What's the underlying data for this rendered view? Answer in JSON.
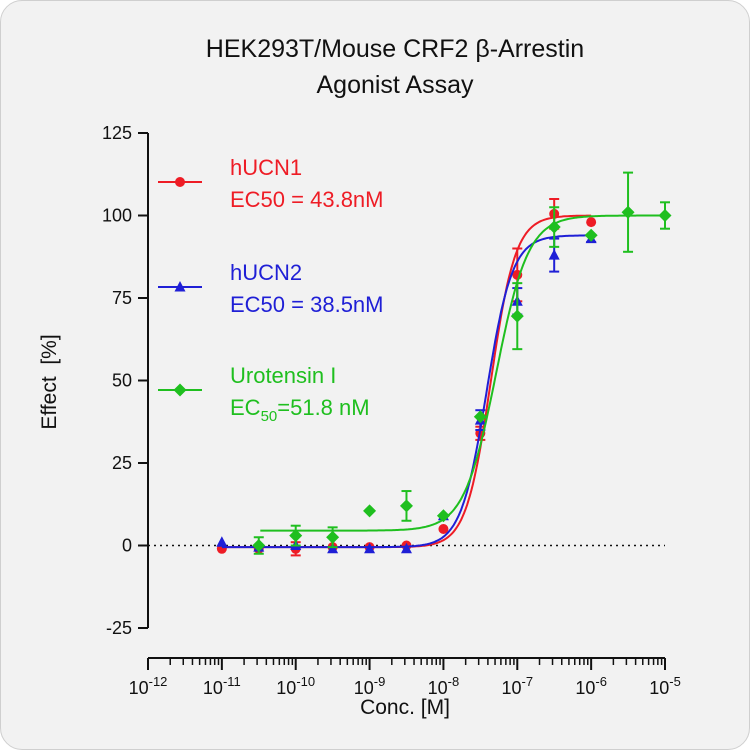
{
  "colors": {
    "hUCN1": "#ee1c25",
    "hUCN2": "#1f1fd6",
    "urotensin": "#1fbf1f",
    "axis": "#111111",
    "background": "#f2f2f2"
  },
  "chart_data": {
    "type": "scatter",
    "title": [
      "HEK293T/Mouse CRF2 β-Arrestin",
      "Agonist Assay"
    ],
    "xlabel": "Conc. [M]",
    "ylabel": "Effect  [%]",
    "xscale": "log",
    "xlim": [
      1e-12,
      1e-05
    ],
    "ylim": [
      -25,
      125
    ],
    "yticks": [
      -25,
      0,
      25,
      50,
      75,
      100,
      125
    ],
    "ytick_labels": [
      "-25",
      "0",
      "25",
      "50",
      "75",
      "100",
      "125"
    ],
    "xtick_labels": [
      {
        "base": "10",
        "exp": "-12"
      },
      {
        "base": "10",
        "exp": "-11"
      },
      {
        "base": "10",
        "exp": "-10"
      },
      {
        "base": "10",
        "exp": "-9"
      },
      {
        "base": "10",
        "exp": "-8"
      },
      {
        "base": "10",
        "exp": "-7"
      },
      {
        "base": "10",
        "exp": "-6"
      },
      {
        "base": "10",
        "exp": "-5"
      }
    ],
    "zero_line": "dotted",
    "legend_position": "top-left",
    "series": [
      {
        "name": "hUCN1",
        "label_lines": [
          "EC50 = 43.8nM"
        ],
        "marker": "circle",
        "ec50": 4.38e-08,
        "fit": {
          "bottom": -0.5,
          "top": 100,
          "hill": 2.6
        },
        "points": [
          {
            "x": 1e-11,
            "y": -1,
            "err": 0
          },
          {
            "x": 3.16e-11,
            "y": -1,
            "err": 0
          },
          {
            "x": 1e-10,
            "y": -1,
            "err": 2
          },
          {
            "x": 3.16e-10,
            "y": -0.5,
            "err": 0
          },
          {
            "x": 1e-09,
            "y": -0.5,
            "err": 0
          },
          {
            "x": 3.16e-09,
            "y": 0,
            "err": 0
          },
          {
            "x": 1e-08,
            "y": 5,
            "err": 0
          },
          {
            "x": 3.16e-08,
            "y": 34,
            "err": 2
          },
          {
            "x": 1e-07,
            "y": 82,
            "err": 8
          },
          {
            "x": 3.16e-07,
            "y": 100.5,
            "err": 4.5
          },
          {
            "x": 1e-06,
            "y": 98,
            "err": 0
          }
        ]
      },
      {
        "name": "hUCN2",
        "label_lines": [
          "EC50 = 38.5nM"
        ],
        "marker": "triangle",
        "ec50": 3.85e-08,
        "fit": {
          "bottom": -0.5,
          "top": 94,
          "hill": 2.5
        },
        "points": [
          {
            "x": 1e-11,
            "y": 1,
            "err": 0
          },
          {
            "x": 3.16e-11,
            "y": -0.5,
            "err": 0
          },
          {
            "x": 1e-10,
            "y": 0,
            "err": 0
          },
          {
            "x": 3.16e-10,
            "y": -1,
            "err": 0
          },
          {
            "x": 1e-09,
            "y": -1,
            "err": 0
          },
          {
            "x": 3.16e-09,
            "y": -1,
            "err": 0
          },
          {
            "x": 1e-08,
            "y": 9,
            "err": 0
          },
          {
            "x": 3.16e-08,
            "y": 38,
            "err": 3
          },
          {
            "x": 1e-07,
            "y": 74,
            "err": 4
          },
          {
            "x": 3.16e-07,
            "y": 88,
            "err": 5
          },
          {
            "x": 1e-06,
            "y": 93,
            "err": 1
          }
        ]
      },
      {
        "name": "Urotensin I",
        "label_lines": [
          "EC",
          "50",
          "=51.8 nM"
        ],
        "marker": "diamond",
        "ec50": 5.18e-08,
        "fit": {
          "bottom": 4.5,
          "top": 100,
          "hill": 2.0
        },
        "points": [
          {
            "x": 3.16e-11,
            "y": 0,
            "err": 2.5
          },
          {
            "x": 1e-10,
            "y": 3,
            "err": 3
          },
          {
            "x": 3.16e-10,
            "y": 2.5,
            "err": 3
          },
          {
            "x": 1e-09,
            "y": 10.5,
            "err": 0
          },
          {
            "x": 3.16e-09,
            "y": 12,
            "err": 4.5
          },
          {
            "x": 1e-08,
            "y": 9,
            "err": 0
          },
          {
            "x": 3.16e-08,
            "y": 39,
            "err": 0
          },
          {
            "x": 1e-07,
            "y": 69.5,
            "err": 10
          },
          {
            "x": 3.16e-07,
            "y": 96.5,
            "err": 6
          },
          {
            "x": 1e-06,
            "y": 94,
            "err": 0
          },
          {
            "x": 3.16e-06,
            "y": 101,
            "err": 12
          },
          {
            "x": 1e-05,
            "y": 100,
            "err": 4
          }
        ]
      }
    ]
  }
}
